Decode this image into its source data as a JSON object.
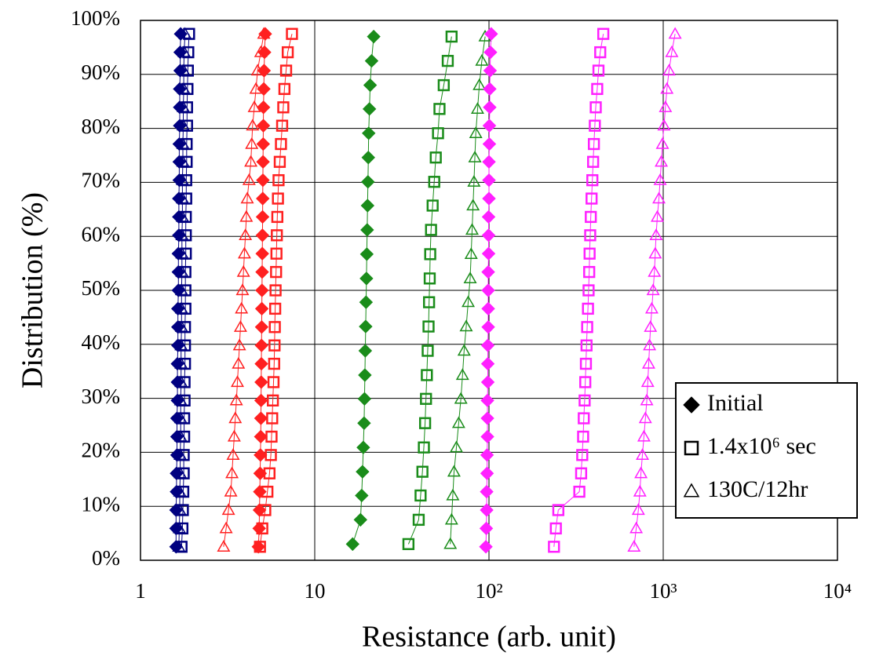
{
  "chart_data": {
    "type": "scatter",
    "xlabel": "Resistance (arb. unit)",
    "ylabel": "Distribution (%)",
    "xscale": "log",
    "grid": true,
    "legend_position": "lower right",
    "xlim": [
      1,
      10000
    ],
    "xticks": [
      1,
      10,
      {
        "value": 100,
        "label": "10²"
      },
      {
        "value": 1000,
        "label": "10³"
      },
      {
        "value": 10000,
        "label": "10⁴"
      }
    ],
    "ylim": [
      0,
      100
    ],
    "yticks": [
      {
        "value": 0,
        "label": "0%"
      },
      {
        "value": 10,
        "label": "10%"
      },
      {
        "value": 20,
        "label": "20%"
      },
      {
        "value": 30,
        "label": "30%"
      },
      {
        "value": 40,
        "label": "40%"
      },
      {
        "value": 50,
        "label": "50%"
      },
      {
        "value": 60,
        "label": "60%"
      },
      {
        "value": 70,
        "label": "70%"
      },
      {
        "value": 80,
        "label": "80%"
      },
      {
        "value": 90,
        "label": "90%"
      },
      {
        "value": 100,
        "label": "100%"
      }
    ],
    "legend": [
      {
        "name": "Initial",
        "marker": "diamond",
        "color": "#000000"
      },
      {
        "name": "1.4x10⁶ sec",
        "marker": "square",
        "color": "#000000"
      },
      {
        "name": "130C/12hr",
        "marker": "triangle",
        "color": "#000000"
      }
    ],
    "series": [
      {
        "marker": "diamond",
        "color": "#000080",
        "x": [
          1.6,
          1.6,
          1.6,
          1.61,
          1.61,
          1.62,
          1.62,
          1.62,
          1.63,
          1.63,
          1.63,
          1.64,
          1.64,
          1.64,
          1.65,
          1.65,
          1.65,
          1.66,
          1.66,
          1.66,
          1.67,
          1.67,
          1.67,
          1.68,
          1.68,
          1.68,
          1.69,
          1.69,
          1.7
        ],
        "values": [
          2.5,
          5.9,
          9.3,
          12.7,
          16.1,
          19.5,
          22.9,
          26.3,
          29.6,
          33.0,
          36.4,
          39.8,
          43.2,
          46.6,
          50.0,
          53.4,
          56.8,
          60.2,
          63.6,
          67.0,
          70.4,
          73.8,
          77.1,
          80.5,
          83.9,
          87.3,
          90.7,
          94.1,
          97.5
        ]
      },
      {
        "marker": "square",
        "color": "#000080",
        "x": [
          1.72,
          1.74,
          1.75,
          1.76,
          1.77,
          1.77,
          1.78,
          1.78,
          1.79,
          1.79,
          1.8,
          1.8,
          1.8,
          1.81,
          1.81,
          1.81,
          1.82,
          1.82,
          1.82,
          1.83,
          1.83,
          1.84,
          1.84,
          1.85,
          1.85,
          1.86,
          1.87,
          1.88,
          1.9
        ],
        "values": [
          2.5,
          5.9,
          9.3,
          12.7,
          16.1,
          19.5,
          22.9,
          26.3,
          29.6,
          33.0,
          36.4,
          39.8,
          43.2,
          46.6,
          50.0,
          53.4,
          56.8,
          60.2,
          63.6,
          67.0,
          70.4,
          73.8,
          77.1,
          80.5,
          83.9,
          87.3,
          90.7,
          94.1,
          97.5
        ]
      },
      {
        "marker": "triangle",
        "color": "#000080",
        "x": [
          1.66,
          1.67,
          1.68,
          1.68,
          1.69,
          1.69,
          1.7,
          1.7,
          1.7,
          1.71,
          1.71,
          1.71,
          1.72,
          1.72,
          1.72,
          1.73,
          1.73,
          1.73,
          1.74,
          1.74,
          1.74,
          1.75,
          1.75,
          1.76,
          1.76,
          1.77,
          1.77,
          1.78,
          1.8
        ],
        "values": [
          2.5,
          5.9,
          9.3,
          12.7,
          16.1,
          19.5,
          22.9,
          26.3,
          29.6,
          33.0,
          36.4,
          39.8,
          43.2,
          46.6,
          50.0,
          53.4,
          56.8,
          60.2,
          63.6,
          67.0,
          70.4,
          73.8,
          77.1,
          80.5,
          83.9,
          87.3,
          90.7,
          94.1,
          97.5
        ]
      },
      {
        "marker": "diamond",
        "color": "#ff2020",
        "x": [
          4.75,
          4.8,
          4.82,
          4.84,
          4.86,
          4.88,
          4.9,
          4.91,
          4.92,
          4.93,
          4.94,
          4.95,
          4.96,
          4.97,
          4.98,
          4.99,
          5.0,
          5.01,
          5.02,
          5.03,
          5.04,
          5.05,
          5.06,
          5.07,
          5.08,
          5.1,
          5.12,
          5.15,
          5.2
        ],
        "values": [
          2.5,
          5.9,
          9.3,
          12.7,
          16.1,
          19.5,
          22.9,
          26.3,
          29.6,
          33.0,
          36.4,
          39.8,
          43.2,
          46.6,
          50.0,
          53.4,
          56.8,
          60.2,
          63.6,
          67.0,
          70.4,
          73.8,
          77.1,
          80.5,
          83.9,
          87.3,
          90.7,
          94.1,
          97.5
        ]
      },
      {
        "marker": "square",
        "color": "#ff2020",
        "x": [
          4.85,
          5.0,
          5.2,
          5.35,
          5.5,
          5.6,
          5.65,
          5.7,
          5.75,
          5.8,
          5.85,
          5.88,
          5.9,
          5.93,
          5.96,
          6.0,
          6.03,
          6.06,
          6.1,
          6.15,
          6.2,
          6.3,
          6.4,
          6.5,
          6.6,
          6.7,
          6.85,
          7.0,
          7.4
        ],
        "values": [
          2.5,
          5.9,
          9.3,
          12.7,
          16.1,
          19.5,
          22.9,
          26.3,
          29.6,
          33.0,
          36.4,
          39.8,
          43.2,
          46.6,
          50.0,
          53.4,
          56.8,
          60.2,
          63.6,
          67.0,
          70.4,
          73.8,
          77.1,
          80.5,
          83.9,
          87.3,
          90.7,
          94.1,
          97.5
        ]
      },
      {
        "marker": "triangle",
        "color": "#ff2020",
        "x": [
          3.0,
          3.1,
          3.2,
          3.3,
          3.35,
          3.4,
          3.45,
          3.5,
          3.55,
          3.6,
          3.65,
          3.7,
          3.75,
          3.8,
          3.85,
          3.9,
          3.95,
          4.0,
          4.05,
          4.1,
          4.2,
          4.3,
          4.35,
          4.4,
          4.5,
          4.6,
          4.7,
          4.9,
          5.1
        ],
        "values": [
          2.5,
          5.9,
          9.3,
          12.7,
          16.1,
          19.5,
          22.9,
          26.3,
          29.6,
          33.0,
          36.4,
          39.8,
          43.2,
          46.6,
          50.0,
          53.4,
          56.8,
          60.2,
          63.6,
          67.0,
          70.4,
          73.8,
          77.1,
          80.5,
          83.9,
          87.3,
          90.7,
          94.1,
          97.5
        ]
      },
      {
        "marker": "diamond",
        "color": "#1a8c1a",
        "x": [
          16.5,
          18.3,
          18.6,
          18.8,
          19.0,
          19.2,
          19.3,
          19.4,
          19.5,
          19.6,
          19.7,
          19.8,
          19.9,
          20.0,
          20.1,
          20.2,
          20.3,
          20.4,
          20.6,
          20.8,
          21.2,
          21.8
        ],
        "values": [
          3,
          7.5,
          12,
          16.4,
          20.9,
          25.4,
          29.9,
          34.3,
          38.8,
          43.3,
          47.8,
          52.2,
          56.7,
          61.2,
          65.7,
          70.1,
          74.6,
          79.1,
          83.6,
          88.0,
          92.5,
          97
        ]
      },
      {
        "marker": "square",
        "color": "#1a8c1a",
        "x": [
          34.5,
          39.5,
          40.5,
          41.5,
          42.3,
          43,
          43.5,
          44,
          44.5,
          45,
          45.3,
          45.7,
          46,
          46.5,
          47.5,
          48.5,
          49.5,
          51,
          52,
          55,
          58,
          61
        ],
        "values": [
          3,
          7.5,
          12,
          16.4,
          20.9,
          25.4,
          29.9,
          34.3,
          38.8,
          43.3,
          47.8,
          52.2,
          56.7,
          61.2,
          65.7,
          70.1,
          74.6,
          79.1,
          83.6,
          88.0,
          92.5,
          97
        ]
      },
      {
        "marker": "triangle",
        "color": "#1a8c1a",
        "x": [
          60,
          61,
          62,
          63,
          65,
          67,
          69,
          70.5,
          72,
          74,
          76,
          78,
          79,
          80,
          81,
          82,
          83,
          84,
          86,
          88,
          91,
          95
        ],
        "values": [
          3,
          7.5,
          12,
          16.4,
          20.9,
          25.4,
          29.9,
          34.3,
          38.8,
          43.3,
          47.8,
          52.2,
          56.7,
          61.2,
          65.7,
          70.1,
          74.6,
          79.1,
          83.6,
          88.0,
          92.5,
          97
        ]
      },
      {
        "marker": "diamond",
        "color": "#ff20ff",
        "x": [
          96,
          96.5,
          97,
          97,
          97.5,
          97.5,
          98,
          98,
          98,
          98.5,
          98.5,
          98.5,
          99,
          99,
          99,
          99,
          99.5,
          99.5,
          99.5,
          100,
          100,
          100,
          100.5,
          100.5,
          101,
          101,
          101.5,
          102,
          103
        ],
        "values": [
          2.5,
          5.9,
          9.3,
          12.7,
          16.1,
          19.5,
          22.9,
          26.3,
          29.6,
          33.0,
          36.4,
          39.8,
          43.2,
          46.6,
          50.0,
          53.4,
          56.8,
          60.2,
          63.6,
          67.0,
          70.4,
          73.8,
          77.1,
          80.5,
          83.9,
          87.3,
          90.7,
          94.1,
          97.5
        ]
      },
      {
        "marker": "square",
        "color": "#ff20ff",
        "x": [
          236,
          242,
          250,
          330,
          338,
          343,
          347,
          350,
          354,
          357,
          360,
          363,
          366,
          370,
          373,
          376,
          378,
          381,
          384,
          388,
          392,
          396,
          400,
          405,
          410,
          418,
          425,
          435,
          453
        ],
        "values": [
          2.5,
          5.9,
          9.3,
          12.7,
          16.1,
          19.5,
          22.9,
          26.3,
          29.6,
          33.0,
          36.4,
          39.8,
          43.2,
          46.6,
          50.0,
          53.4,
          56.8,
          60.2,
          63.6,
          67.0,
          70.4,
          73.8,
          77.1,
          80.5,
          83.9,
          87.3,
          90.7,
          94.1,
          97.5
        ]
      },
      {
        "marker": "triangle",
        "color": "#ff20ff",
        "x": [
          680,
          700,
          720,
          735,
          745,
          760,
          775,
          790,
          805,
          815,
          825,
          835,
          845,
          860,
          875,
          890,
          900,
          910,
          925,
          945,
          960,
          975,
          990,
          1010,
          1030,
          1050,
          1080,
          1120,
          1170
        ],
        "values": [
          2.5,
          5.9,
          9.3,
          12.7,
          16.1,
          19.5,
          22.9,
          26.3,
          29.6,
          33.0,
          36.4,
          39.8,
          43.2,
          46.6,
          50.0,
          53.4,
          56.8,
          60.2,
          63.6,
          67.0,
          70.4,
          73.8,
          77.1,
          80.5,
          83.9,
          87.3,
          90.7,
          94.1,
          97.5
        ]
      }
    ]
  }
}
